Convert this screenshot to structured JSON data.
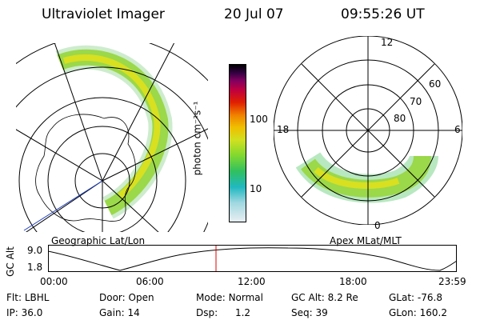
{
  "header": {
    "instrument": "Ultraviolet Imager",
    "date": "20 Jul 07",
    "time": "09:55:26 UT"
  },
  "left_panel": {
    "caption": "Geographic Lat/Lon"
  },
  "right_panel": {
    "caption": "Apex MLat/MLT",
    "mlt_labels": [
      "12",
      "18",
      "6",
      "0"
    ],
    "mlat_labels": [
      "60",
      "70",
      "80"
    ]
  },
  "colorbar": {
    "unit_label": "photon cm⁻²s⁻¹",
    "tick_labels": [
      "100",
      "10"
    ],
    "colors": [
      "#e8eef2",
      "#a0d8e0",
      "#20b8c0",
      "#30c060",
      "#80d830",
      "#d0e020",
      "#f0c000",
      "#f08000",
      "#e02000",
      "#c00040",
      "#800060",
      "#300040",
      "#000000"
    ]
  },
  "altitude_plot": {
    "ylabel": "GC Alt",
    "ytick_top": "9.0",
    "ytick_bottom": "1.8",
    "time_ticks": [
      "00:00",
      "06:00",
      "12:00",
      "18:00",
      "23:59"
    ],
    "current_time_marker_color": "#e00000"
  },
  "info": {
    "filter_label": "Flt:",
    "filter_value": "LBHL",
    "ip_label": "IP:",
    "ip_value": "36.0",
    "door_label": "Door:",
    "door_value": "Open",
    "gain_label": "Gain:",
    "gain_value": "14",
    "mode_label": "Mode:",
    "mode_value": "Normal",
    "dsp_label": "Dsp:",
    "dsp_value": "1.2",
    "gcalt_label": "GC Alt:",
    "gcalt_value": "8.2 Re",
    "seq_label": "Seq:",
    "seq_value": "39",
    "glat_label": "GLat:",
    "glat_value": "-76.8",
    "glon_label": "GLon:",
    "glon_value": "160.2"
  }
}
